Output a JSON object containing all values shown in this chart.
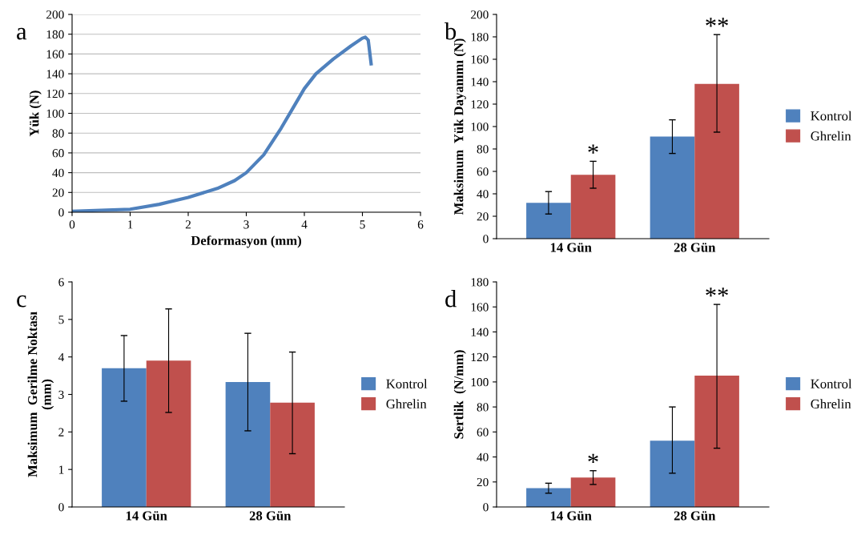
{
  "chart_data": [
    {
      "type": "line",
      "xlabel": "Deformasyon (mm)",
      "ylabel": "Yük (N)",
      "annotations": [
        "a"
      ],
      "x": [
        0,
        0.5,
        1,
        1.5,
        2,
        2.5,
        2.8,
        3,
        3.3,
        3.6,
        3.8,
        4,
        4.2,
        4.5,
        4.8,
        5.0,
        5.05,
        5.1,
        5.15
      ],
      "series": [
        {
          "color": "#4f81bd",
          "values": [
            1,
            2,
            3,
            8,
            15,
            24,
            32,
            40,
            58,
            85,
            105,
            125,
            140,
            155,
            168,
            176,
            177,
            174,
            150
          ]
        }
      ],
      "xlim": [
        0,
        6
      ],
      "xticks": [
        0,
        1,
        2,
        3,
        4,
        5,
        6
      ],
      "ylim": [
        0,
        200
      ],
      "yticks": [
        0,
        20,
        40,
        60,
        80,
        100,
        120,
        140,
        160,
        180,
        200
      ],
      "grid": "y",
      "marker": "none",
      "line_style": "solid"
    },
    {
      "type": "bar",
      "ylabel": "Maksimum  Yük Dayanımı (N)",
      "categories": [
        "14 Gün",
        "28 Gün"
      ],
      "series": [
        {
          "name": "Kontrol",
          "color": "#4f81bd",
          "values": [
            32,
            91
          ],
          "errors": [
            [
              22,
              42
            ],
            [
              76,
              106
            ]
          ]
        },
        {
          "name": "Ghrelin",
          "color": "#c0504d",
          "values": [
            57,
            138
          ],
          "errors": [
            [
              45,
              69
            ],
            [
              95,
              182
            ]
          ]
        }
      ],
      "annotations": [
        "b",
        "*",
        "**"
      ],
      "ylim": [
        0,
        200
      ],
      "yticks": [
        0,
        20,
        40,
        60,
        80,
        100,
        120,
        140,
        160,
        180,
        200
      ],
      "legend": "right",
      "grid": false
    },
    {
      "type": "bar",
      "ylabel": "Maksimum  Gerilme Noktası\n(mm)",
      "categories": [
        "14 Gün",
        "28 Gün"
      ],
      "series": [
        {
          "name": "Kontrol",
          "color": "#4f81bd",
          "values": [
            3.7,
            3.33
          ],
          "errors": [
            [
              2.82,
              4.57
            ],
            [
              2.03,
              4.63
            ]
          ]
        },
        {
          "name": "Ghrelin",
          "color": "#c0504d",
          "values": [
            3.9,
            2.78
          ],
          "errors": [
            [
              2.52,
              5.28
            ],
            [
              1.42,
              4.13
            ]
          ]
        }
      ],
      "annotations": [
        "c"
      ],
      "ylim": [
        0,
        6
      ],
      "yticks": [
        0,
        1,
        2,
        3,
        4,
        5,
        6
      ],
      "legend": "right",
      "grid": false
    },
    {
      "type": "bar",
      "ylabel": "Sertlik  (N/mm)",
      "categories": [
        "14 Gün",
        "28 Gün"
      ],
      "series": [
        {
          "name": "Kontrol",
          "color": "#4f81bd",
          "values": [
            15,
            53
          ],
          "errors": [
            [
              11,
              19
            ],
            [
              27,
              80
            ]
          ]
        },
        {
          "name": "Ghrelin",
          "color": "#c0504d",
          "values": [
            23.5,
            105
          ],
          "errors": [
            [
              18,
              29
            ],
            [
              47,
              162
            ]
          ]
        }
      ],
      "annotations": [
        "d",
        "*",
        "**"
      ],
      "ylim": [
        0,
        180
      ],
      "yticks": [
        0,
        20,
        40,
        60,
        80,
        100,
        120,
        140,
        160,
        180
      ],
      "legend": "right",
      "grid": false
    }
  ]
}
